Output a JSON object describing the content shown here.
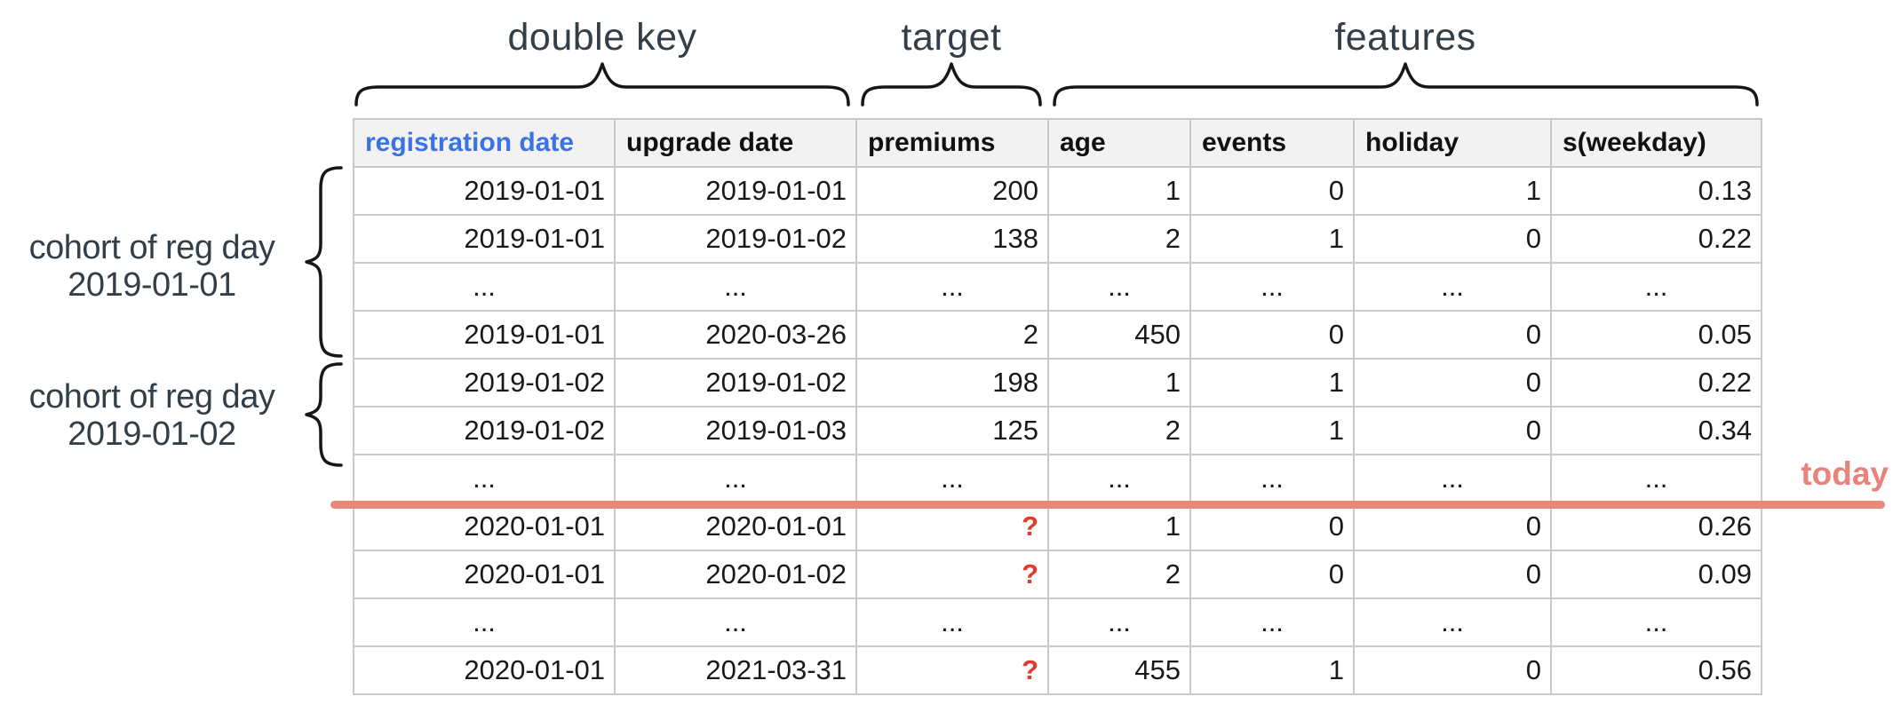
{
  "annotations": {
    "double_key": "double key",
    "target": "target",
    "features": "features",
    "cohort1": {
      "line1": "cohort of reg day",
      "line2": "2019-01-01"
    },
    "cohort2": {
      "line1": "cohort of reg day",
      "line2": "2019-01-02"
    },
    "today": "today"
  },
  "colors": {
    "key_header_blue": "#3b72e4",
    "unknown_red": "#e23b2e",
    "today_salmon": "#e9887c",
    "label_slate": "#323e48",
    "table_border_gray": "#c9c9c9",
    "header_background": "#f2f2f2"
  },
  "table": {
    "columns": [
      "registration date",
      "upgrade date",
      "premiums",
      "age",
      "events",
      "holiday",
      "s(weekday)"
    ],
    "column_groups": [
      {
        "label": "double key",
        "columns": [
          "registration date",
          "upgrade date"
        ]
      },
      {
        "label": "target",
        "columns": [
          "premiums"
        ]
      },
      {
        "label": "features",
        "columns": [
          "age",
          "events",
          "holiday",
          "s(weekday)"
        ]
      }
    ],
    "rows": [
      [
        "2019-01-01",
        "2019-01-01",
        "200",
        "1",
        "0",
        "1",
        "0.13"
      ],
      [
        "2019-01-01",
        "2019-01-02",
        "138",
        "2",
        "1",
        "0",
        "0.22"
      ],
      [
        "...",
        "...",
        "...",
        "...",
        "...",
        "...",
        "..."
      ],
      [
        "2019-01-01",
        "2020-03-26",
        "2",
        "450",
        "0",
        "0",
        "0.05"
      ],
      [
        "2019-01-02",
        "2019-01-02",
        "198",
        "1",
        "1",
        "0",
        "0.22"
      ],
      [
        "2019-01-02",
        "2019-01-03",
        "125",
        "2",
        "1",
        "0",
        "0.34"
      ],
      [
        "...",
        "...",
        "...",
        "...",
        "...",
        "...",
        "..."
      ],
      [
        "2020-01-01",
        "2020-01-01",
        "?",
        "1",
        "0",
        "0",
        "0.26"
      ],
      [
        "2020-01-01",
        "2020-01-02",
        "?",
        "2",
        "0",
        "0",
        "0.09"
      ],
      [
        "...",
        "...",
        "...",
        "...",
        "...",
        "...",
        "..."
      ],
      [
        "2020-01-01",
        "2021-03-31",
        "?",
        "455",
        "1",
        "0",
        "0.56"
      ]
    ],
    "today_line_after_data_row": 7
  }
}
